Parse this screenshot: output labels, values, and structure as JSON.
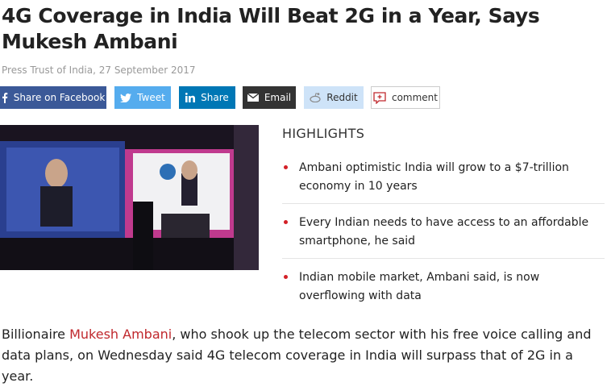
{
  "header": {
    "title": "4G Coverage in India Will Beat 2G in a Year, Says Mukesh Ambani",
    "byline": "Press Trust of India, 27 September 2017"
  },
  "share": [
    "Share on Facebook",
    "Tweet",
    "Share",
    "Email",
    "Reddit",
    "comment"
  ],
  "highlights": {
    "heading": "HIGHLIGHTS",
    "items": [
      "Ambani optimistic India will grow to a $7-trillion economy in 10 years",
      "Every Indian needs to have access to an affordable smartphone, he said",
      "Indian mobile market, Ambani said, is now overflowing with data"
    ]
  },
  "body": {
    "lead": "Billionaire ",
    "link": "Mukesh Ambani",
    "rest": ", who shook up the telecom sector with his free voice calling and data plans, on Wednesday said 4G telecom coverage in India will surpass that of 2G in a year."
  }
}
